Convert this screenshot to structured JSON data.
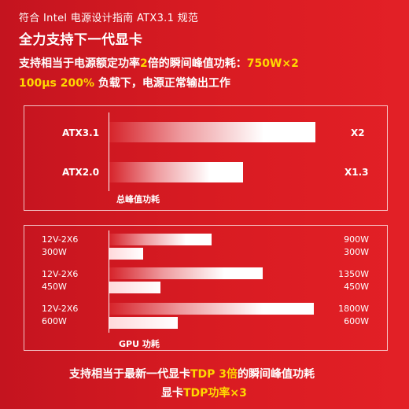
{
  "header": {
    "subtitle": "符合 Intel 电源设计指南 ATX3.1 规范",
    "title": "全力支持下一代显卡",
    "line1_pre": "支持相当于电源额定功率",
    "line1_hl": "2",
    "line1_mid": "倍的瞬间峰值功耗：",
    "line1_val": "750W×2",
    "line2_hl": "100μs 200%",
    "line2_rest": " 负载下，电源正常输出工作"
  },
  "peak_chart": {
    "caption": "总峰值功耗",
    "rows": [
      {
        "label": "ATX3.1",
        "multiplier": "X2",
        "value": 2
      },
      {
        "label": "ATX2.0",
        "multiplier": "X1.3",
        "value": 1.3
      }
    ]
  },
  "gpu_chart": {
    "caption": "GPU 功耗",
    "groups": [
      {
        "label1": "12V-2X6",
        "label2": "300W",
        "peak": "900W",
        "tdp": "300W",
        "peak_value": 900,
        "tdp_value": 300
      },
      {
        "label1": "12V-2X6",
        "label2": "450W",
        "peak": "1350W",
        "tdp": "450W",
        "peak_value": 1350,
        "tdp_value": 450
      },
      {
        "label1": "12V-2X6",
        "label2": "600W",
        "peak": "1800W",
        "tdp": "600W",
        "peak_value": 1800,
        "tdp_value": 600
      }
    ]
  },
  "footer": {
    "line1_pre": "支持相当于最新一代显卡",
    "line1_hl": "TDP 3倍",
    "line1_post": "的瞬间峰值功耗",
    "line2_pre": "显卡",
    "line2_hl": "TDP功率×3"
  },
  "colors": {
    "background": "#d81b22",
    "highlight": "#ffd800",
    "text": "#ffffff"
  }
}
